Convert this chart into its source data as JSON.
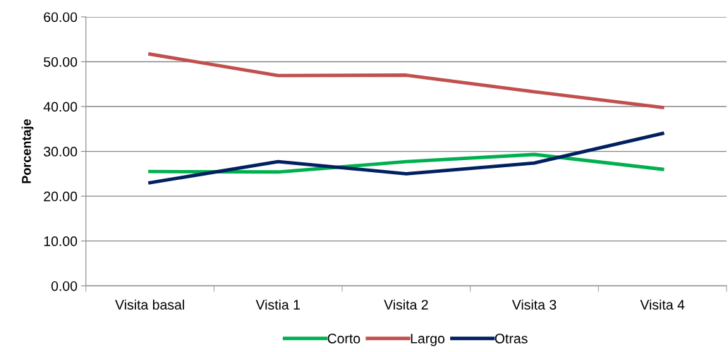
{
  "chart_data": {
    "type": "line",
    "ylabel": "Porcentaje",
    "categories": [
      "Visita basal",
      "Vistia 1",
      "Visita 2",
      "Visita 3",
      "Visita 4"
    ],
    "series": [
      {
        "name": "Corto",
        "color": "#00b050",
        "values": [
          25.5,
          25.4,
          27.7,
          29.3,
          26.0
        ]
      },
      {
        "name": "Largo",
        "color": "#c0504d",
        "values": [
          51.7,
          46.9,
          47.0,
          43.3,
          39.8
        ]
      },
      {
        "name": "Otras",
        "color": "#002060",
        "values": [
          23.0,
          27.7,
          25.0,
          27.4,
          34.0
        ]
      }
    ],
    "ylim": [
      0,
      60
    ],
    "yticks": [
      {
        "value": 0,
        "label": "0.00"
      },
      {
        "value": 10,
        "label": "10.00"
      },
      {
        "value": 20,
        "label": "20.00"
      },
      {
        "value": 30,
        "label": "30.00"
      },
      {
        "value": 40,
        "label": "40.00"
      },
      {
        "value": 50,
        "label": "50.00"
      },
      {
        "value": 60,
        "label": "60.00"
      }
    ],
    "grid": "y",
    "legend": "bottom",
    "marker": "none",
    "line_style": "solid"
  }
}
